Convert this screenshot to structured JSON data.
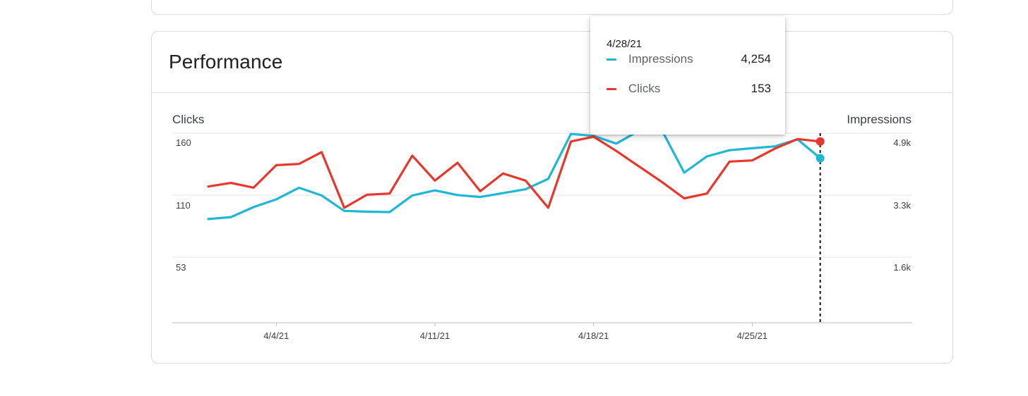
{
  "card_title": "Performance",
  "colors": {
    "impressions": "#1fb7d6",
    "clicks": "#e8372c",
    "grid": "#e4e4e4",
    "axis": "#bdbdbd"
  },
  "tooltip": {
    "date": "4/28/21",
    "rows": [
      {
        "label": "Impressions",
        "value": "4,254",
        "color": "#1fb7d6",
        "icon": "line-swatch-icon"
      },
      {
        "label": "Clicks",
        "value": "153",
        "color": "#e8372c",
        "icon": "line-swatch-icon"
      }
    ]
  },
  "chart_data": {
    "type": "line",
    "left_axis_label": "Clicks",
    "right_axis_label": "Impressions",
    "left_ticks": [
      "160",
      "110",
      "53"
    ],
    "right_ticks": [
      "4.9k",
      "3.3k",
      "1.6k"
    ],
    "x_tick_labels": [
      "4/4/21",
      "4/11/21",
      "4/18/21",
      "4/25/21"
    ],
    "x": [
      "4/1/21",
      "4/2/21",
      "4/3/21",
      "4/4/21",
      "4/5/21",
      "4/6/21",
      "4/7/21",
      "4/8/21",
      "4/9/21",
      "4/10/21",
      "4/11/21",
      "4/12/21",
      "4/13/21",
      "4/14/21",
      "4/15/21",
      "4/16/21",
      "4/17/21",
      "4/18/21",
      "4/19/21",
      "4/20/21",
      "4/21/21",
      "4/22/21",
      "4/23/21",
      "4/24/21",
      "4/25/21",
      "4/26/21",
      "4/27/21",
      "4/28/21"
    ],
    "y_left_range": [
      0,
      160
    ],
    "y_right_range": [
      0,
      4900
    ],
    "series": [
      {
        "name": "Clicks",
        "axis": "left",
        "values": [
          115,
          118,
          114,
          133,
          134,
          144,
          97,
          108,
          109,
          141,
          120,
          135,
          111,
          126,
          120,
          97,
          153,
          157,
          145,
          132,
          119,
          105,
          109,
          136,
          137,
          147,
          155,
          153
        ]
      },
      {
        "name": "Impressions",
        "axis": "right",
        "values": [
          2680,
          2730,
          2990,
          3190,
          3490,
          3290,
          2890,
          2870,
          2860,
          3290,
          3420,
          3300,
          3250,
          3350,
          3450,
          3720,
          4880,
          4830,
          4630,
          4960,
          4990,
          3880,
          4300,
          4460,
          4510,
          4560,
          4740,
          4254
        ]
      }
    ]
  }
}
